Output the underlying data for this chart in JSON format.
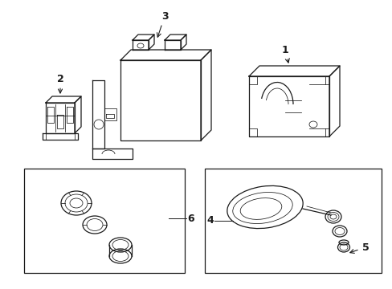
{
  "bg_color": "#ffffff",
  "line_color": "#1a1a1a",
  "lw": 0.9,
  "tlw": 0.55,
  "fig_width": 4.89,
  "fig_height": 3.6,
  "dpi": 100
}
